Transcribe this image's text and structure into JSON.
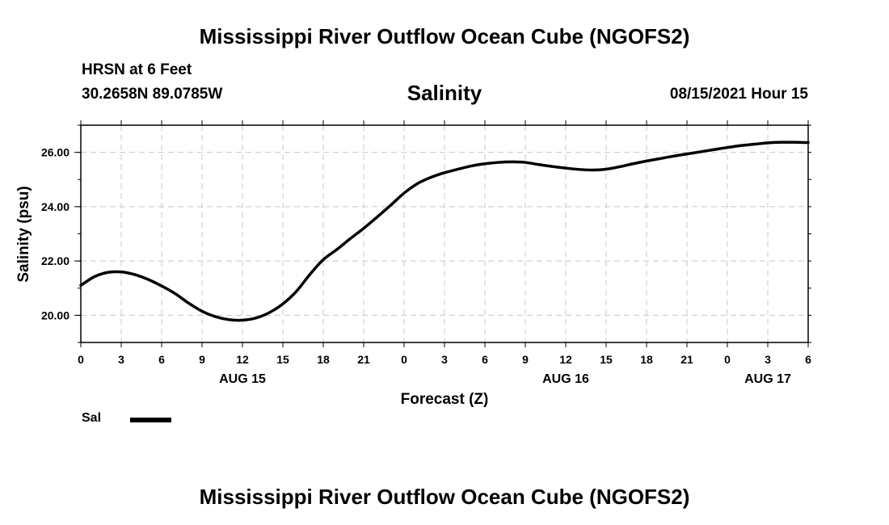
{
  "header": {
    "title": "Mississippi River Outflow Ocean Cube (NGOFS2)",
    "station": "HRSN at 6 Feet",
    "coordinates": "30.2658N  89.0785W",
    "variable": "Salinity",
    "datetime": "08/15/2021 Hour 15"
  },
  "footer": {
    "title": "Mississippi River Outflow Ocean Cube (NGOFS2)"
  },
  "legend": {
    "label": "Sal"
  },
  "chart_data": {
    "type": "line",
    "title": "Salinity",
    "xlabel": "Forecast (Z)",
    "ylabel": "Salinity (psu)",
    "xlim": [
      0,
      54
    ],
    "ylim": [
      19.0,
      27.0
    ],
    "grid": true,
    "legend_position": "bottom-left",
    "x_ticks": [
      0,
      3,
      6,
      9,
      12,
      15,
      18,
      21,
      24,
      27,
      30,
      33,
      36,
      39,
      42,
      45,
      48,
      51,
      54
    ],
    "x_tick_labels": [
      "0",
      "3",
      "6",
      "9",
      "12",
      "15",
      "18",
      "21",
      "0",
      "3",
      "6",
      "9",
      "12",
      "15",
      "18",
      "21",
      "0",
      "3",
      "6"
    ],
    "date_labels": [
      {
        "x": 12,
        "label": "AUG 15"
      },
      {
        "x": 36,
        "label": "AUG 16"
      },
      {
        "x": 51,
        "label": "AUG 17"
      }
    ],
    "y_ticks": [
      20,
      22,
      24,
      26
    ],
    "y_tick_labels": [
      "20.00",
      "22.00",
      "24.00",
      "26.00"
    ],
    "series": [
      {
        "name": "Sal",
        "color": "#000000",
        "x": [
          0,
          1,
          2,
          3,
          4,
          5,
          6,
          7,
          8,
          9,
          10,
          11,
          12,
          13,
          14,
          15,
          16,
          17,
          18,
          19,
          20,
          21,
          22,
          23,
          24,
          25,
          26,
          27,
          28,
          29,
          30,
          31,
          32,
          33,
          34,
          35,
          36,
          37,
          38,
          39,
          40,
          41,
          42,
          43,
          44,
          45,
          46,
          47,
          48,
          49,
          50,
          51,
          52,
          53,
          54
        ],
        "y": [
          21.1,
          21.42,
          21.58,
          21.6,
          21.5,
          21.32,
          21.08,
          20.8,
          20.45,
          20.15,
          19.95,
          19.84,
          19.82,
          19.9,
          20.1,
          20.42,
          20.88,
          21.5,
          22.05,
          22.42,
          22.82,
          23.2,
          23.62,
          24.05,
          24.5,
          24.85,
          25.08,
          25.25,
          25.38,
          25.5,
          25.58,
          25.63,
          25.65,
          25.63,
          25.55,
          25.48,
          25.42,
          25.37,
          25.35,
          25.38,
          25.47,
          25.58,
          25.68,
          25.77,
          25.86,
          25.94,
          26.02,
          26.1,
          26.18,
          26.25,
          26.3,
          26.35,
          26.37,
          26.37,
          26.36
        ]
      }
    ]
  }
}
